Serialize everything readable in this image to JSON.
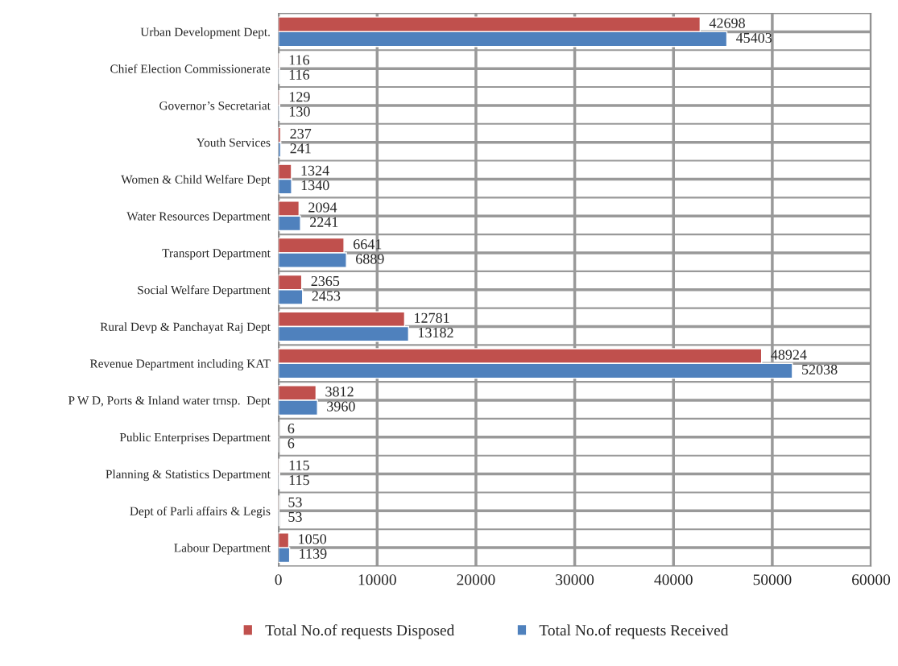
{
  "chart_data": {
    "type": "bar",
    "orientation": "horizontal",
    "categories": [
      "Urban Development Dept.",
      "Chief Election Commissionerate",
      "Governor’s Secretariat",
      "Youth Services",
      "Women & Child Welfare Dept",
      "Water Resources Department",
      "Transport Department",
      "Social Welfare Department",
      "Rural Devp & Panchayat Raj Dept",
      "Revenue Department including KAT",
      "P W D, Ports & Inland water trnsp.  Dept",
      "Public Enterprises Department",
      "Planning & Statistics Department",
      "Dept of Parli affairs & Legis",
      "Labour Department"
    ],
    "series": [
      {
        "name": "Total No.of requests Disposed",
        "color": "#c0504d",
        "values": [
          42698,
          116,
          129,
          237,
          1324,
          2094,
          6641,
          2365,
          12781,
          48924,
          3812,
          6,
          115,
          53,
          1050
        ]
      },
      {
        "name": "Total No.of requests Received",
        "color": "#4f81bd",
        "values": [
          45403,
          116,
          130,
          241,
          1340,
          2241,
          6889,
          2453,
          13182,
          52038,
          3960,
          6,
          115,
          53,
          1139
        ]
      }
    ],
    "xlim": [
      0,
      60000
    ],
    "xticks": [
      0,
      10000,
      20000,
      30000,
      40000,
      50000,
      60000
    ],
    "grid": true,
    "legend": "bottom",
    "data_labels": true
  }
}
